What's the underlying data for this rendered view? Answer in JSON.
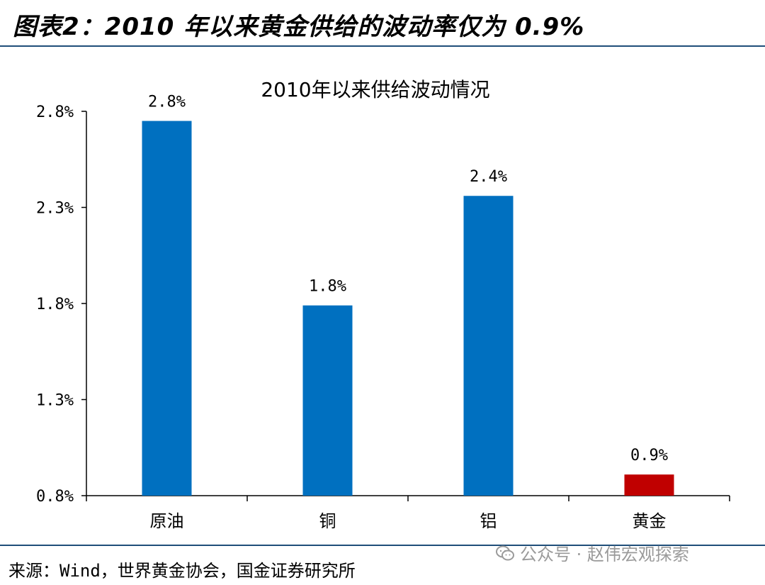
{
  "header": {
    "title": "图表2：2010 年以来黄金供给的波动率仅为 0.9%"
  },
  "footer": {
    "source": "来源：Wind，世界黄金协会，国金证券研究所",
    "watermark": "公众号 · 赵伟宏观探索"
  },
  "colors": {
    "bar": "#0070c0",
    "highlight": "#c00000",
    "rule": "#1f4e79"
  },
  "chart_data": {
    "type": "bar",
    "title": "2010年以来供给波动情况",
    "categories": [
      "原油",
      "铜",
      "铝",
      "黄金"
    ],
    "values": [
      2.75,
      1.79,
      2.36,
      0.91
    ],
    "data_labels": [
      "2.8%",
      "1.8%",
      "2.4%",
      "0.9%"
    ],
    "bar_colors": [
      "#0070c0",
      "#0070c0",
      "#0070c0",
      "#c00000"
    ],
    "y_ticks": [
      0.8,
      1.3,
      1.8,
      2.3,
      2.8
    ],
    "y_tick_labels": [
      "0.8%",
      "1.3%",
      "1.8%",
      "2.3%",
      "2.8%"
    ],
    "ylim": [
      0.8,
      2.8
    ],
    "grid": false,
    "legend": "none"
  }
}
